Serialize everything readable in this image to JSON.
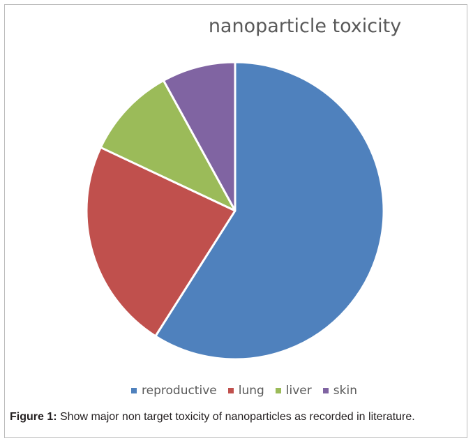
{
  "chart_data": {
    "type": "pie",
    "title": "nanoparticle toxicity",
    "categories": [
      "reproductive",
      "lung",
      "liver",
      "skin"
    ],
    "values": [
      59,
      23,
      10,
      8
    ],
    "colors": [
      "#4f81bd",
      "#c0504d",
      "#9bbb59",
      "#8064a2"
    ],
    "legend_position": "bottom",
    "start_angle": "top",
    "direction": "clockwise"
  },
  "caption": {
    "label": "Figure 1:",
    "text": " Show major non target toxicity of nanoparticles as recorded in literature."
  }
}
